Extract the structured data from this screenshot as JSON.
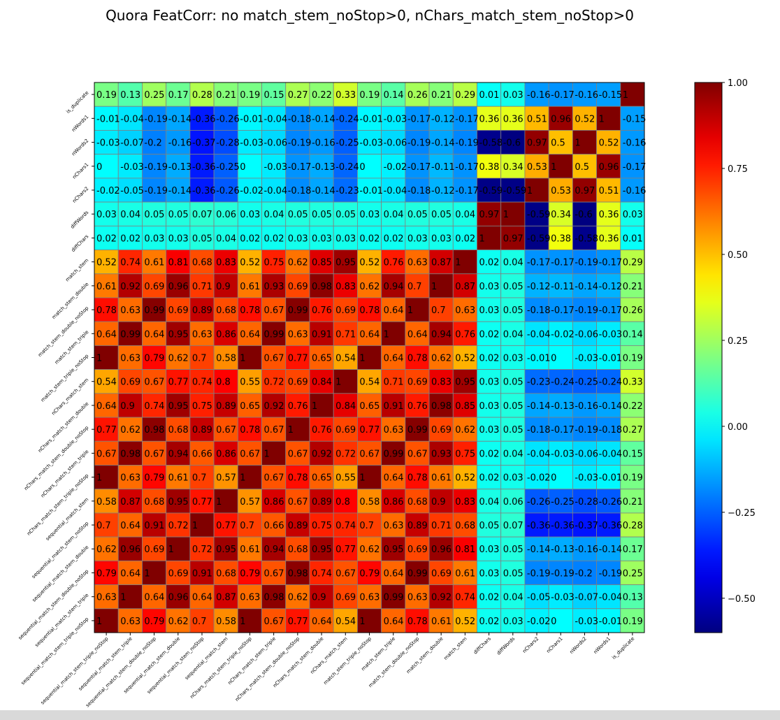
{
  "chart_data": {
    "type": "heatmap",
    "title": "Quora FeatCorr: no match_stem_noStop>0, nChars_match_stem_noStop>0",
    "colormap": "jet",
    "vmin": -0.6,
    "vmax": 1.0,
    "row_labels": [
      "is_duplicate",
      "nWords1",
      "nWords2",
      "nChars1",
      "nChars2",
      "diffWords",
      "diffChars",
      "match_stem",
      "match_stem_double",
      "match_stem_double_noStop",
      "match_stem_triple",
      "match_stem_triple_noStop",
      "nChars_match_stem",
      "nChars_match_stem_double",
      "nChars_match_stem_double_noStop",
      "nChars_match_stem_triple",
      "nChars_match_stem_triple_noStop",
      "sequential_match_stem",
      "sequential_match_stem_noStop",
      "sequential_match_stem_double",
      "sequential_match_stem_double_noStop",
      "sequential_match_stem_triple",
      "sequential_match_stem_triple_noStop"
    ],
    "col_labels": [
      "sequential_match_stem_triple_noStop",
      "sequential_match_stem_triple",
      "sequential_match_stem_double_noStop",
      "sequential_match_stem_double",
      "sequential_match_stem_noStop",
      "sequential_match_stem",
      "nChars_match_stem_triple_noStop",
      "nChars_match_stem_triple",
      "nChars_match_stem_double_noStop",
      "nChars_match_stem_double",
      "nChars_match_stem",
      "match_stem_triple_noStop",
      "match_stem_triple",
      "match_stem_double_noStop",
      "match_stem_double",
      "match_stem",
      "diffChars",
      "diffWords",
      "nChars2",
      "nChars1",
      "nWords2",
      "nWords1",
      "is_duplicate"
    ],
    "values": [
      [
        0.19,
        0.13,
        0.25,
        0.17,
        0.28,
        0.21,
        0.19,
        0.15,
        0.27,
        0.22,
        0.33,
        0.19,
        0.14,
        0.26,
        0.21,
        0.29,
        0.01,
        0.03,
        -0.16,
        -0.17,
        -0.16,
        -0.15,
        1.0
      ],
      [
        -0.01,
        -0.04,
        -0.19,
        -0.14,
        -0.36,
        -0.26,
        -0.01,
        -0.04,
        -0.18,
        -0.14,
        -0.24,
        -0.01,
        -0.03,
        -0.17,
        -0.12,
        -0.17,
        0.36,
        0.36,
        0.51,
        0.96,
        0.52,
        1.0,
        -0.15
      ],
      [
        -0.03,
        -0.07,
        -0.2,
        -0.16,
        -0.37,
        -0.28,
        -0.03,
        -0.06,
        -0.19,
        -0.16,
        -0.25,
        -0.03,
        -0.06,
        -0.19,
        -0.14,
        -0.19,
        -0.58,
        -0.6,
        0.97,
        0.5,
        1.0,
        0.52,
        -0.16
      ],
      [
        -0.0,
        -0.03,
        -0.19,
        -0.13,
        -0.36,
        -0.25,
        -0.0,
        -0.03,
        -0.17,
        -0.13,
        -0.24,
        0.0,
        -0.02,
        -0.17,
        -0.11,
        -0.17,
        0.38,
        0.34,
        0.53,
        1.0,
        0.5,
        0.96,
        -0.17
      ],
      [
        -0.02,
        -0.05,
        -0.19,
        -0.14,
        -0.36,
        -0.26,
        -0.02,
        -0.04,
        -0.18,
        -0.14,
        -0.23,
        -0.01,
        -0.04,
        -0.18,
        -0.12,
        -0.17,
        -0.59,
        -0.59,
        1.0,
        0.53,
        0.97,
        0.51,
        -0.16
      ],
      [
        0.03,
        0.04,
        0.05,
        0.05,
        0.07,
        0.06,
        0.03,
        0.04,
        0.05,
        0.05,
        0.05,
        0.03,
        0.04,
        0.05,
        0.05,
        0.04,
        0.97,
        1.0,
        -0.59,
        0.34,
        -0.6,
        0.36,
        0.03
      ],
      [
        0.02,
        0.02,
        0.03,
        0.03,
        0.05,
        0.04,
        0.02,
        0.02,
        0.03,
        0.03,
        0.03,
        0.02,
        0.02,
        0.03,
        0.03,
        0.02,
        1.0,
        0.97,
        -0.59,
        0.38,
        -0.58,
        0.36,
        0.01
      ],
      [
        0.52,
        0.74,
        0.61,
        0.81,
        0.68,
        0.83,
        0.52,
        0.75,
        0.62,
        0.85,
        0.95,
        0.52,
        0.76,
        0.63,
        0.87,
        1.0,
        0.02,
        0.04,
        -0.17,
        -0.17,
        -0.19,
        -0.17,
        0.29
      ],
      [
        0.61,
        0.92,
        0.69,
        0.96,
        0.71,
        0.9,
        0.61,
        0.93,
        0.69,
        0.98,
        0.83,
        0.62,
        0.94,
        0.7,
        1.0,
        0.87,
        0.03,
        0.05,
        -0.12,
        -0.11,
        -0.14,
        -0.12,
        0.21
      ],
      [
        0.78,
        0.63,
        0.99,
        0.69,
        0.89,
        0.68,
        0.78,
        0.67,
        0.99,
        0.76,
        0.69,
        0.78,
        0.64,
        1.0,
        0.7,
        0.63,
        0.03,
        0.05,
        -0.18,
        -0.17,
        -0.19,
        -0.17,
        0.26
      ],
      [
        0.64,
        0.99,
        0.64,
        0.95,
        0.63,
        0.86,
        0.64,
        0.99,
        0.63,
        0.91,
        0.71,
        0.64,
        1.0,
        0.64,
        0.94,
        0.76,
        0.02,
        0.04,
        -0.04,
        -0.02,
        -0.06,
        -0.03,
        0.14
      ],
      [
        1.0,
        0.63,
        0.79,
        0.62,
        0.7,
        0.58,
        1.0,
        0.67,
        0.77,
        0.65,
        0.54,
        1.0,
        0.64,
        0.78,
        0.62,
        0.52,
        0.02,
        0.03,
        -0.01,
        0.0,
        -0.03,
        -0.01,
        0.19
      ],
      [
        0.54,
        0.69,
        0.67,
        0.77,
        0.74,
        0.8,
        0.55,
        0.72,
        0.69,
        0.84,
        1.0,
        0.54,
        0.71,
        0.69,
        0.83,
        0.95,
        0.03,
        0.05,
        -0.23,
        -0.24,
        -0.25,
        -0.24,
        0.33
      ],
      [
        0.64,
        0.9,
        0.74,
        0.95,
        0.75,
        0.89,
        0.65,
        0.92,
        0.76,
        1.0,
        0.84,
        0.65,
        0.91,
        0.76,
        0.98,
        0.85,
        0.03,
        0.05,
        -0.14,
        -0.13,
        -0.16,
        -0.14,
        0.22
      ],
      [
        0.77,
        0.62,
        0.98,
        0.68,
        0.89,
        0.67,
        0.78,
        0.67,
        1.0,
        0.76,
        0.69,
        0.77,
        0.63,
        0.99,
        0.69,
        0.62,
        0.03,
        0.05,
        -0.18,
        -0.17,
        -0.19,
        -0.18,
        0.27
      ],
      [
        0.67,
        0.98,
        0.67,
        0.94,
        0.66,
        0.86,
        0.67,
        1.0,
        0.67,
        0.92,
        0.72,
        0.67,
        0.99,
        0.67,
        0.93,
        0.75,
        0.02,
        0.04,
        -0.04,
        -0.03,
        -0.06,
        -0.04,
        0.15
      ],
      [
        1.0,
        0.63,
        0.79,
        0.61,
        0.7,
        0.57,
        1.0,
        0.67,
        0.78,
        0.65,
        0.55,
        1.0,
        0.64,
        0.78,
        0.61,
        0.52,
        0.02,
        0.03,
        -0.02,
        -0.0,
        -0.03,
        -0.01,
        0.19
      ],
      [
        0.58,
        0.87,
        0.68,
        0.95,
        0.77,
        1.0,
        0.57,
        0.86,
        0.67,
        0.89,
        0.8,
        0.58,
        0.86,
        0.68,
        0.9,
        0.83,
        0.04,
        0.06,
        -0.26,
        -0.25,
        -0.28,
        -0.26,
        0.21
      ],
      [
        0.7,
        0.64,
        0.91,
        0.72,
        1.0,
        0.77,
        0.7,
        0.66,
        0.89,
        0.75,
        0.74,
        0.7,
        0.63,
        0.89,
        0.71,
        0.68,
        0.05,
        0.07,
        -0.36,
        -0.36,
        -0.37,
        -0.36,
        0.28
      ],
      [
        0.62,
        0.96,
        0.69,
        1.0,
        0.72,
        0.95,
        0.61,
        0.94,
        0.68,
        0.95,
        0.77,
        0.62,
        0.95,
        0.69,
        0.96,
        0.81,
        0.03,
        0.05,
        -0.14,
        -0.13,
        -0.16,
        -0.14,
        0.17
      ],
      [
        0.79,
        0.64,
        1.0,
        0.69,
        0.91,
        0.68,
        0.79,
        0.67,
        0.98,
        0.74,
        0.67,
        0.79,
        0.64,
        0.99,
        0.69,
        0.61,
        0.03,
        0.05,
        -0.19,
        -0.19,
        -0.2,
        -0.19,
        0.25
      ],
      [
        0.63,
        1.0,
        0.64,
        0.96,
        0.64,
        0.87,
        0.63,
        0.98,
        0.62,
        0.9,
        0.69,
        0.63,
        0.99,
        0.63,
        0.92,
        0.74,
        0.02,
        0.04,
        -0.05,
        -0.03,
        -0.07,
        -0.04,
        0.13
      ],
      [
        1.0,
        0.63,
        0.79,
        0.62,
        0.7,
        0.58,
        1.0,
        0.67,
        0.77,
        0.64,
        0.54,
        1.0,
        0.64,
        0.78,
        0.61,
        0.52,
        0.02,
        0.03,
        -0.02,
        -0.0,
        -0.03,
        -0.01,
        0.19
      ]
    ],
    "colorbar_ticks": [
      1.0,
      0.75,
      0.5,
      0.25,
      0.0,
      -0.25,
      -0.5
    ],
    "colorbar_tick_labels": [
      "1.00",
      "0.75",
      "0.50",
      "0.25",
      "0.00",
      "−0.25",
      "−0.50"
    ],
    "grid": true
  }
}
